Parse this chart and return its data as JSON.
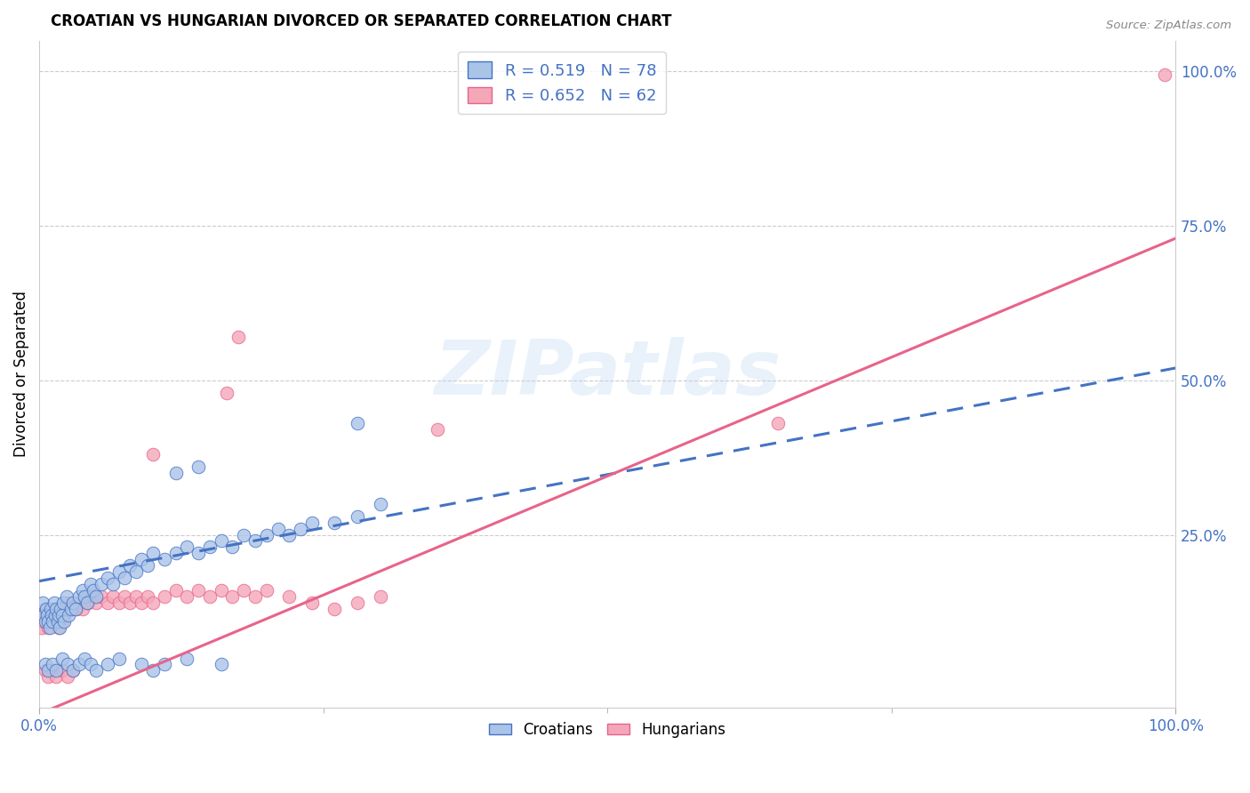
{
  "title": "CROATIAN VS HUNGARIAN DIVORCED OR SEPARATED CORRELATION CHART",
  "source": "Source: ZipAtlas.com",
  "ylabel": "Divorced or Separated",
  "xlim": [
    0,
    1
  ],
  "ylim": [
    -0.03,
    1.05
  ],
  "croatian_color": "#aac4e8",
  "hungarian_color": "#f4a7b9",
  "croatian_line_color": "#4472c4",
  "hungarian_line_color": "#e8638a",
  "watermark_text": "ZIPatlas",
  "cr_line": [
    0.0,
    0.175,
    1.0,
    0.52
  ],
  "hu_line": [
    0.0,
    -0.04,
    1.0,
    0.73
  ],
  "croatian_scatter": [
    [
      0.003,
      0.14
    ],
    [
      0.004,
      0.12
    ],
    [
      0.005,
      0.11
    ],
    [
      0.006,
      0.13
    ],
    [
      0.007,
      0.12
    ],
    [
      0.008,
      0.11
    ],
    [
      0.009,
      0.1
    ],
    [
      0.01,
      0.13
    ],
    [
      0.011,
      0.12
    ],
    [
      0.012,
      0.11
    ],
    [
      0.013,
      0.14
    ],
    [
      0.014,
      0.12
    ],
    [
      0.015,
      0.13
    ],
    [
      0.016,
      0.11
    ],
    [
      0.017,
      0.12
    ],
    [
      0.018,
      0.1
    ],
    [
      0.019,
      0.13
    ],
    [
      0.02,
      0.12
    ],
    [
      0.021,
      0.14
    ],
    [
      0.022,
      0.11
    ],
    [
      0.024,
      0.15
    ],
    [
      0.026,
      0.12
    ],
    [
      0.028,
      0.13
    ],
    [
      0.03,
      0.14
    ],
    [
      0.032,
      0.13
    ],
    [
      0.035,
      0.15
    ],
    [
      0.038,
      0.16
    ],
    [
      0.04,
      0.15
    ],
    [
      0.042,
      0.14
    ],
    [
      0.045,
      0.17
    ],
    [
      0.048,
      0.16
    ],
    [
      0.05,
      0.15
    ],
    [
      0.055,
      0.17
    ],
    [
      0.06,
      0.18
    ],
    [
      0.065,
      0.17
    ],
    [
      0.07,
      0.19
    ],
    [
      0.075,
      0.18
    ],
    [
      0.08,
      0.2
    ],
    [
      0.085,
      0.19
    ],
    [
      0.09,
      0.21
    ],
    [
      0.095,
      0.2
    ],
    [
      0.1,
      0.22
    ],
    [
      0.11,
      0.21
    ],
    [
      0.12,
      0.22
    ],
    [
      0.13,
      0.23
    ],
    [
      0.14,
      0.22
    ],
    [
      0.15,
      0.23
    ],
    [
      0.16,
      0.24
    ],
    [
      0.17,
      0.23
    ],
    [
      0.18,
      0.25
    ],
    [
      0.19,
      0.24
    ],
    [
      0.2,
      0.25
    ],
    [
      0.21,
      0.26
    ],
    [
      0.22,
      0.25
    ],
    [
      0.23,
      0.26
    ],
    [
      0.24,
      0.27
    ],
    [
      0.26,
      0.27
    ],
    [
      0.28,
      0.28
    ],
    [
      0.3,
      0.3
    ],
    [
      0.12,
      0.35
    ],
    [
      0.14,
      0.36
    ],
    [
      0.28,
      0.43
    ],
    [
      0.005,
      0.04
    ],
    [
      0.008,
      0.03
    ],
    [
      0.012,
      0.04
    ],
    [
      0.015,
      0.03
    ],
    [
      0.02,
      0.05
    ],
    [
      0.025,
      0.04
    ],
    [
      0.03,
      0.03
    ],
    [
      0.035,
      0.04
    ],
    [
      0.04,
      0.05
    ],
    [
      0.045,
      0.04
    ],
    [
      0.05,
      0.03
    ],
    [
      0.06,
      0.04
    ],
    [
      0.07,
      0.05
    ],
    [
      0.09,
      0.04
    ],
    [
      0.1,
      0.03
    ],
    [
      0.11,
      0.04
    ],
    [
      0.13,
      0.05
    ],
    [
      0.16,
      0.04
    ]
  ],
  "hungarian_scatter": [
    [
      0.002,
      0.1
    ],
    [
      0.003,
      0.12
    ],
    [
      0.004,
      0.11
    ],
    [
      0.005,
      0.13
    ],
    [
      0.006,
      0.12
    ],
    [
      0.007,
      0.11
    ],
    [
      0.008,
      0.1
    ],
    [
      0.009,
      0.12
    ],
    [
      0.01,
      0.11
    ],
    [
      0.011,
      0.12
    ],
    [
      0.012,
      0.13
    ],
    [
      0.013,
      0.11
    ],
    [
      0.014,
      0.12
    ],
    [
      0.015,
      0.11
    ],
    [
      0.016,
      0.13
    ],
    [
      0.017,
      0.1
    ],
    [
      0.018,
      0.12
    ],
    [
      0.02,
      0.11
    ],
    [
      0.022,
      0.12
    ],
    [
      0.024,
      0.13
    ],
    [
      0.026,
      0.14
    ],
    [
      0.028,
      0.13
    ],
    [
      0.03,
      0.14
    ],
    [
      0.033,
      0.13
    ],
    [
      0.035,
      0.14
    ],
    [
      0.038,
      0.13
    ],
    [
      0.04,
      0.15
    ],
    [
      0.043,
      0.14
    ],
    [
      0.046,
      0.15
    ],
    [
      0.05,
      0.14
    ],
    [
      0.055,
      0.15
    ],
    [
      0.06,
      0.14
    ],
    [
      0.065,
      0.15
    ],
    [
      0.07,
      0.14
    ],
    [
      0.075,
      0.15
    ],
    [
      0.08,
      0.14
    ],
    [
      0.085,
      0.15
    ],
    [
      0.09,
      0.14
    ],
    [
      0.095,
      0.15
    ],
    [
      0.1,
      0.14
    ],
    [
      0.11,
      0.15
    ],
    [
      0.12,
      0.16
    ],
    [
      0.13,
      0.15
    ],
    [
      0.14,
      0.16
    ],
    [
      0.15,
      0.15
    ],
    [
      0.16,
      0.16
    ],
    [
      0.17,
      0.15
    ],
    [
      0.18,
      0.16
    ],
    [
      0.19,
      0.15
    ],
    [
      0.2,
      0.16
    ],
    [
      0.22,
      0.15
    ],
    [
      0.24,
      0.14
    ],
    [
      0.26,
      0.13
    ],
    [
      0.28,
      0.14
    ],
    [
      0.3,
      0.15
    ],
    [
      0.1,
      0.38
    ],
    [
      0.165,
      0.48
    ],
    [
      0.175,
      0.57
    ],
    [
      0.35,
      0.42
    ],
    [
      0.65,
      0.43
    ],
    [
      0.99,
      0.995
    ],
    [
      0.005,
      0.03
    ],
    [
      0.008,
      0.02
    ],
    [
      0.012,
      0.03
    ],
    [
      0.015,
      0.02
    ],
    [
      0.02,
      0.03
    ],
    [
      0.025,
      0.02
    ],
    [
      0.03,
      0.03
    ]
  ]
}
